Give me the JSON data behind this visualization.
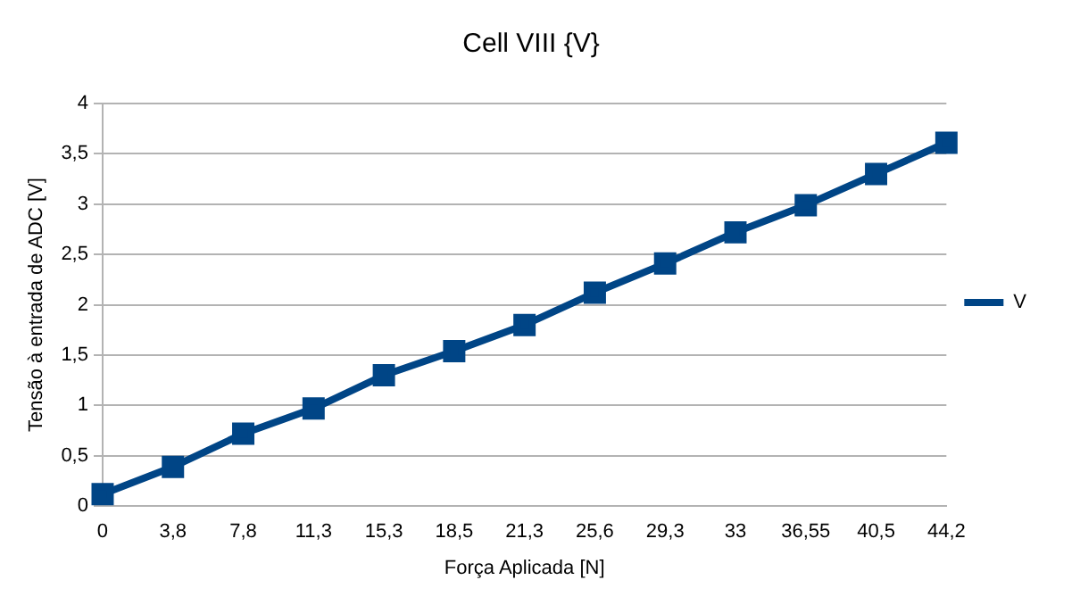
{
  "chart_data": {
    "type": "line",
    "title": "Cell VIII {V}",
    "xlabel": "Força Aplicada [N]",
    "ylabel": "Tensão à entrada de ADC [V]",
    "categories": [
      "0",
      "3,8",
      "7,8",
      "11,3",
      "15,3",
      "18,5",
      "21,3",
      "25,6",
      "29,3",
      "33",
      "36,55",
      "40,5",
      "44,2"
    ],
    "series": [
      {
        "name": "V",
        "color": "#004586",
        "values": [
          0.12,
          0.39,
          0.72,
          0.97,
          1.3,
          1.54,
          1.8,
          2.12,
          2.41,
          2.72,
          2.99,
          3.3,
          3.61
        ]
      }
    ],
    "ylim": [
      0,
      4
    ],
    "yticks": [
      0,
      {
        "value": 0.5,
        "label": "0,5"
      },
      1,
      {
        "value": 1.5,
        "label": "1,5"
      },
      2,
      {
        "value": 2.5,
        "label": "2,5"
      },
      3,
      {
        "value": 3.5,
        "label": "3,5"
      },
      4
    ],
    "grid": "y",
    "legend": "right",
    "marker": "square",
    "line_style": "solid"
  }
}
